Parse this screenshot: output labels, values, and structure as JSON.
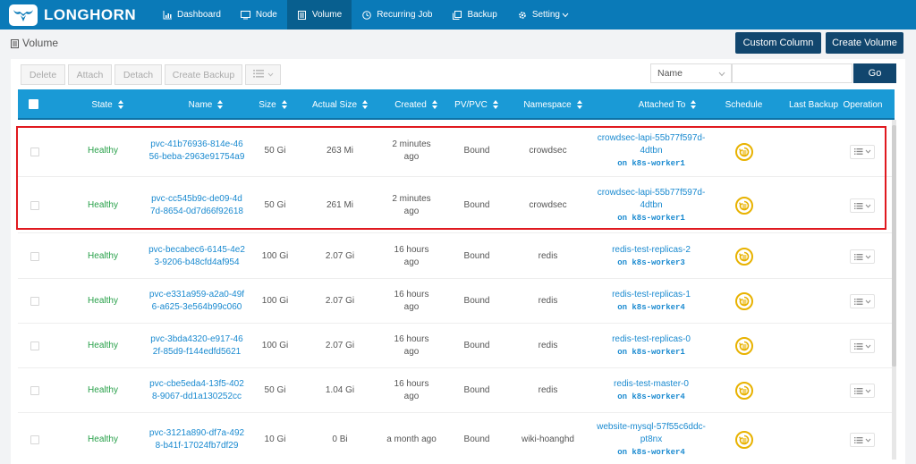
{
  "brand": {
    "name": "LONGHORN"
  },
  "nav": [
    {
      "label": "Dashboard",
      "icon": "chart-icon"
    },
    {
      "label": "Node",
      "icon": "monitor-icon"
    },
    {
      "label": "Volume",
      "icon": "list-icon",
      "active": true
    },
    {
      "label": "Recurring Job",
      "icon": "clock-icon"
    },
    {
      "label": "Backup",
      "icon": "copy-icon"
    },
    {
      "label": "Setting",
      "icon": "gear-icon",
      "dropdown": true
    }
  ],
  "page": {
    "title": "Volume"
  },
  "buttons": {
    "custom_column": "Custom Column",
    "create_volume": "Create Volume"
  },
  "toolbar": {
    "delete": "Delete",
    "attach": "Attach",
    "detach": "Detach",
    "create_backup": "Create Backup"
  },
  "filter": {
    "field": "Name",
    "search_value": "",
    "go": "Go"
  },
  "columns": {
    "state": "State",
    "name": "Name",
    "size": "Size",
    "actual_size": "Actual Size",
    "created": "Created",
    "pvpvc": "PV/PVC",
    "namespace": "Namespace",
    "attached_to": "Attached To",
    "schedule": "Schedule",
    "last_backup": "Last Backup",
    "operation": "Operation"
  },
  "rows": [
    {
      "state": "Healthy",
      "name1": "pvc-41b76936-814e-46",
      "name2": "56-beba-2963e91754a9",
      "size": "50 Gi",
      "actual": "263 Mi",
      "created1": "2 minutes",
      "created2": "ago",
      "pvpvc": "Bound",
      "ns": "crowdsec",
      "att1": "crowdsec-lapi-55b77f597d-",
      "att2": "4dtbn",
      "node": "on k8s-worker1"
    },
    {
      "state": "Healthy",
      "name1": "pvc-cc545b9c-de09-4d",
      "name2": "7d-8654-0d7d66f92618",
      "size": "50 Gi",
      "actual": "261 Mi",
      "created1": "2 minutes",
      "created2": "ago",
      "pvpvc": "Bound",
      "ns": "crowdsec",
      "att1": "crowdsec-lapi-55b77f597d-",
      "att2": "4dtbn",
      "node": "on k8s-worker1"
    },
    {
      "state": "Healthy",
      "name1": "pvc-becabec6-6145-4e2",
      "name2": "3-9206-b48cfd4af954",
      "size": "100 Gi",
      "actual": "2.07 Gi",
      "created1": "16 hours",
      "created2": "ago",
      "pvpvc": "Bound",
      "ns": "redis",
      "att1": "redis-test-replicas-2",
      "att2": "",
      "node": "on k8s-worker3"
    },
    {
      "state": "Healthy",
      "name1": "pvc-e331a959-a2a0-49f",
      "name2": "6-a625-3e564b99c060",
      "size": "100 Gi",
      "actual": "2.07 Gi",
      "created1": "16 hours",
      "created2": "ago",
      "pvpvc": "Bound",
      "ns": "redis",
      "att1": "redis-test-replicas-1",
      "att2": "",
      "node": "on k8s-worker4"
    },
    {
      "state": "Healthy",
      "name1": "pvc-3bda4320-e917-46",
      "name2": "2f-85d9-f144edfd5621",
      "size": "100 Gi",
      "actual": "2.07 Gi",
      "created1": "16 hours",
      "created2": "ago",
      "pvpvc": "Bound",
      "ns": "redis",
      "att1": "redis-test-replicas-0",
      "att2": "",
      "node": "on k8s-worker1"
    },
    {
      "state": "Healthy",
      "name1": "pvc-cbe5eda4-13f5-402",
      "name2": "8-9067-dd1a130252cc",
      "size": "50 Gi",
      "actual": "1.04 Gi",
      "created1": "16 hours",
      "created2": "ago",
      "pvpvc": "Bound",
      "ns": "redis",
      "att1": "redis-test-master-0",
      "att2": "",
      "node": "on k8s-worker4"
    },
    {
      "state": "Healthy",
      "name1": "pvc-3121a890-df7a-492",
      "name2": "8-b41f-17024fb7df29",
      "size": "10 Gi",
      "actual": "0 Bi",
      "created1": "a month ago",
      "created2": "",
      "pvpvc": "Bound",
      "ns": "wiki-hoanghd",
      "att1": "website-mysql-57f55c6ddc-",
      "att2": "pt8nx",
      "node": "on k8s-worker4"
    }
  ]
}
